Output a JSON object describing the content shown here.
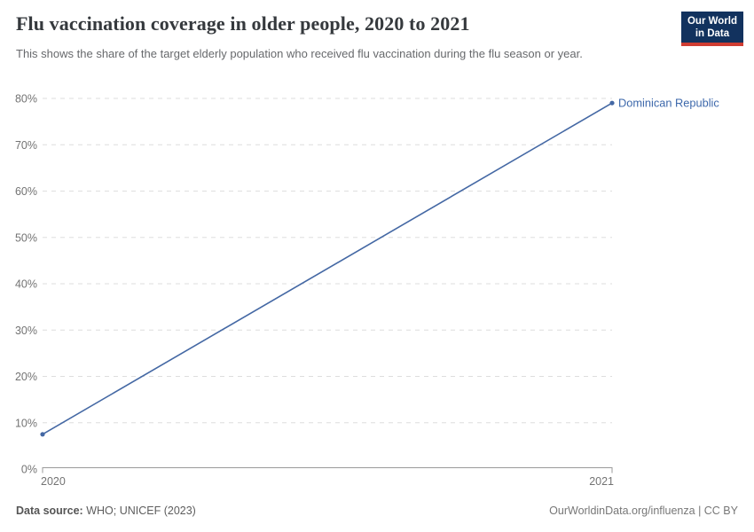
{
  "header": {
    "title": "Flu vaccination coverage in older people, 2020 to 2021",
    "subtitle": "This shows the share of the target elderly population who received flu vaccination during the flu season or year.",
    "logo": {
      "line1": "Our World",
      "line2": "in Data"
    }
  },
  "chart_data": {
    "type": "line",
    "title": "Flu vaccination coverage in older people, 2020 to 2021",
    "x": [
      2020,
      2021
    ],
    "x_tick_labels": [
      "2020",
      "2021"
    ],
    "series": [
      {
        "name": "Dominican Republic",
        "values": [
          7.5,
          79
        ]
      }
    ],
    "xlabel": "",
    "ylabel": "",
    "ylim": [
      0,
      80
    ],
    "yticks": [
      0,
      10,
      20,
      30,
      40,
      50,
      60,
      70,
      80
    ],
    "ytick_suffix": "%",
    "grid": "horizontal-dashed",
    "legend_position": "end-of-line-label",
    "colors": {
      "line": "#4468a4",
      "entity_label": "#3d68ab",
      "gridline": "#dedede",
      "axis": "#9a9a9a",
      "tick_text": "#737373"
    }
  },
  "footer": {
    "source_label": "Data source:",
    "source_value": "WHO; UNICEF (2023)",
    "credit": "OurWorldinData.org/influenza | CC BY"
  }
}
